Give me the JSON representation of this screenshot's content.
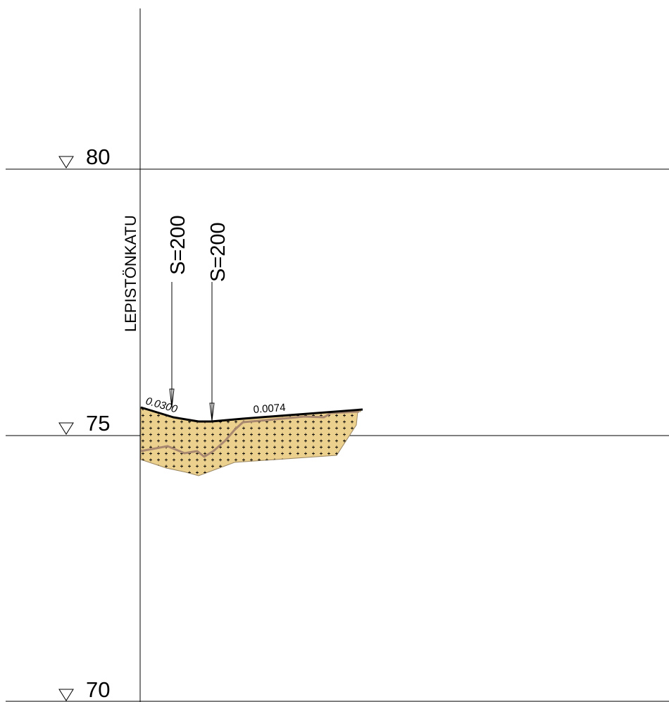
{
  "profile": {
    "street_name": "LEPISTÖNKATU",
    "elevation_levels": [
      {
        "label": "80",
        "elevation": 80
      },
      {
        "label": "75",
        "elevation": 75
      },
      {
        "label": "70",
        "elevation": 70
      }
    ],
    "level_marker_icon": "triangle-down-icon",
    "markers": [
      {
        "label": "S=200"
      },
      {
        "label": "S=200"
      }
    ],
    "slopes": [
      {
        "label": "0.0300"
      },
      {
        "label": "0.0074"
      }
    ]
  },
  "colors": {
    "background": "#ffffff",
    "lines": "#000000",
    "soil_fill": "#ecd08e",
    "soil_outline": "#9a8660",
    "subsurface_line": "#a98870",
    "pattern_marks": "#000000"
  }
}
